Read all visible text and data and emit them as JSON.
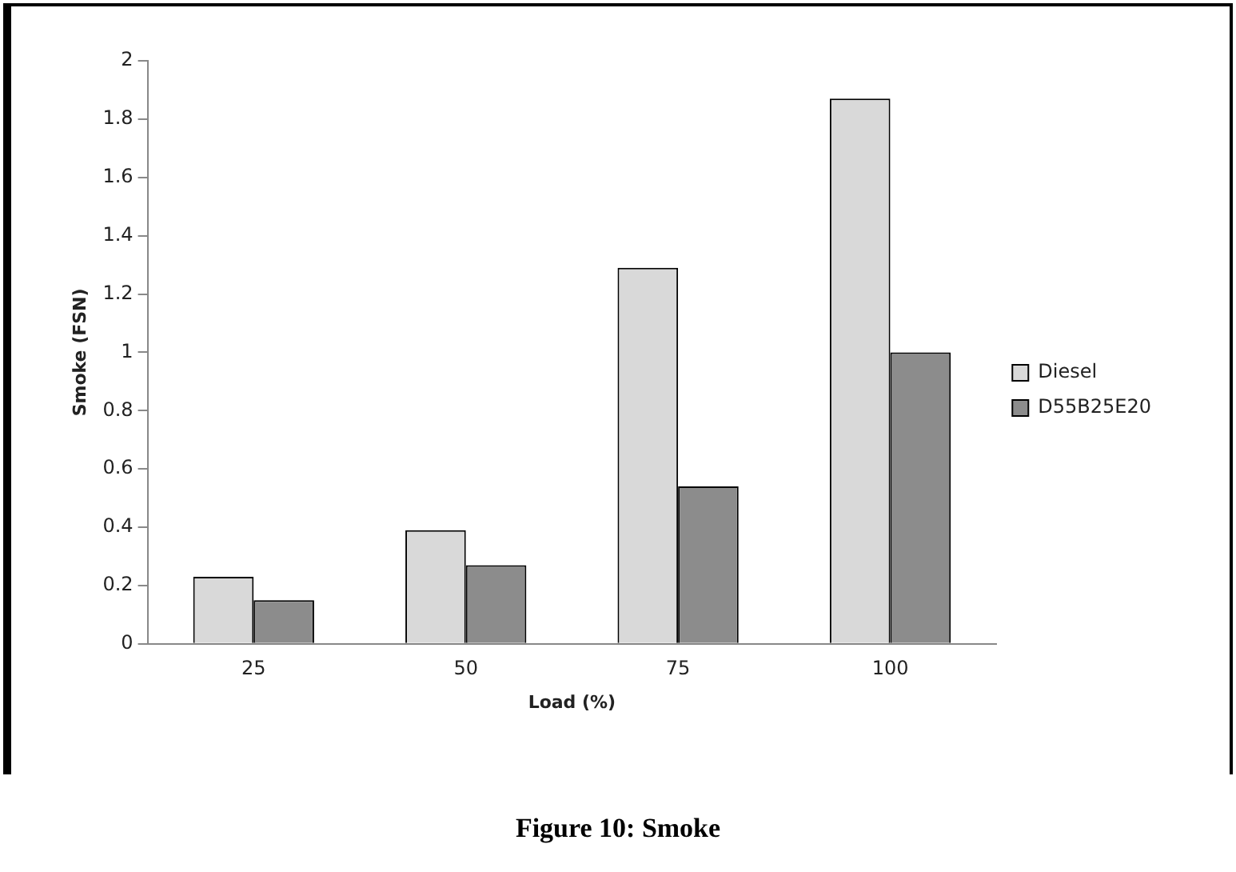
{
  "chart_data": {
    "type": "bar",
    "xlabel": "Load (%)",
    "ylabel": "Smoke (FSN)",
    "categories": [
      "25",
      "50",
      "75",
      "100"
    ],
    "series": [
      {
        "name": "Diesel",
        "color": "#d9d9d9",
        "values": [
          0.23,
          0.39,
          1.29,
          1.87
        ]
      },
      {
        "name": "D55B25E20",
        "color": "#8c8c8c",
        "values": [
          0.15,
          0.27,
          0.54,
          1.0
        ]
      }
    ],
    "ylim": [
      0,
      2
    ],
    "yticks": [
      0,
      0.2,
      0.4,
      0.6,
      0.8,
      1,
      1.2,
      1.4,
      1.6,
      1.8,
      2
    ],
    "grid": false,
    "legend": "right",
    "annotations": [
      "Figure 10: Smoke"
    ]
  }
}
